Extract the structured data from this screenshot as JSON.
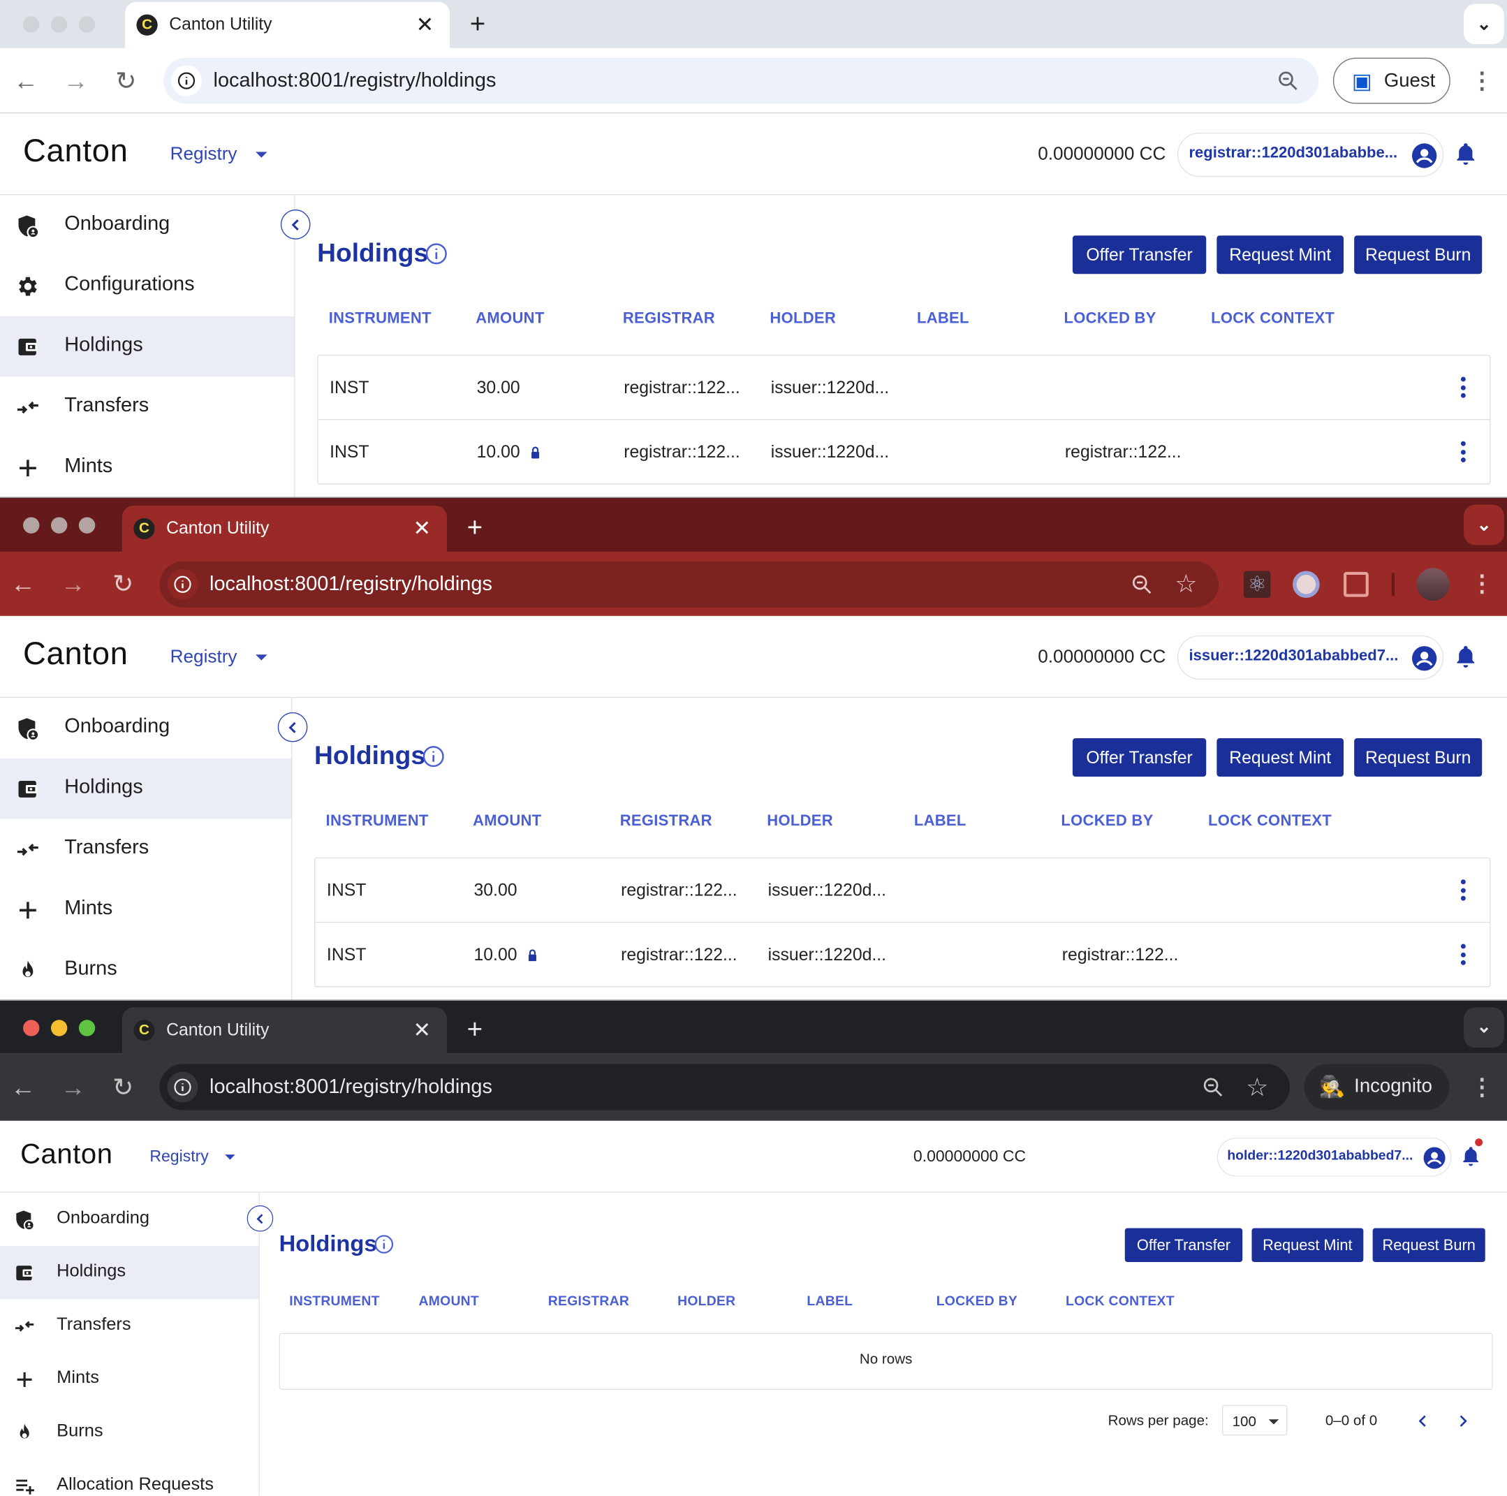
{
  "windows": [
    {
      "theme": "light",
      "browser": {
        "tab_title": "Canton Utility",
        "url": "localhost:8001/registry/holdings",
        "profile_label": "Guest",
        "colors": {
          "tabstrip": "#dfe3ea",
          "tab": "#ffffff",
          "toolbar": "#ffffff",
          "omnibox": "#edf2fa",
          "text": "#1f1f1f",
          "icon": "#5f6368"
        }
      },
      "app": {
        "logo": "Canton",
        "nav_menu": "Registry",
        "balance": "0.00000000 CC",
        "party": "registrar::1220d301ababbe...",
        "notification_dot": false,
        "sidebar": [
          {
            "label": "Onboarding",
            "icon": "shield-person-icon",
            "active": false
          },
          {
            "label": "Configurations",
            "icon": "gear-icon",
            "active": false
          },
          {
            "label": "Holdings",
            "icon": "wallet-icon",
            "active": true
          },
          {
            "label": "Transfers",
            "icon": "transfer-arrows-icon",
            "active": false
          },
          {
            "label": "Mints",
            "icon": "plus-icon",
            "active": false
          }
        ],
        "page_title": "Holdings",
        "buttons": [
          "Offer Transfer",
          "Request Mint",
          "Request Burn"
        ],
        "columns": [
          "INSTRUMENT",
          "AMOUNT",
          "REGISTRAR",
          "HOLDER",
          "LABEL",
          "LOCKED BY",
          "LOCK CONTEXT"
        ],
        "rows": [
          {
            "instrument": "INST",
            "amount": "30.00",
            "locked": false,
            "registrar": "registrar::122...",
            "holder": "issuer::1220d...",
            "label": "",
            "locked_by": "",
            "lock_context": ""
          },
          {
            "instrument": "INST",
            "amount": "10.00",
            "locked": true,
            "registrar": "registrar::122...",
            "holder": "issuer::1220d...",
            "label": "",
            "locked_by": "registrar::122...",
            "lock_context": ""
          }
        ]
      }
    },
    {
      "theme": "red",
      "browser": {
        "tab_title": "Canton Utility",
        "url": "localhost:8001/registry/holdings",
        "colors": {
          "tabstrip": "#641a1a",
          "tab": "#9a2a27",
          "toolbar": "#9a2a27",
          "omnibox": "#7c2321",
          "text": "#ffffff",
          "icon": "#e6c9c7"
        }
      },
      "app": {
        "logo": "Canton",
        "nav_menu": "Registry",
        "balance": "0.00000000 CC",
        "party": "issuer::1220d301ababbed7...",
        "notification_dot": false,
        "sidebar": [
          {
            "label": "Onboarding",
            "icon": "shield-person-icon",
            "active": false
          },
          {
            "label": "Holdings",
            "icon": "wallet-icon",
            "active": true
          },
          {
            "label": "Transfers",
            "icon": "transfer-arrows-icon",
            "active": false
          },
          {
            "label": "Mints",
            "icon": "plus-icon",
            "active": false
          },
          {
            "label": "Burns",
            "icon": "flame-icon",
            "active": false
          }
        ],
        "page_title": "Holdings",
        "buttons": [
          "Offer Transfer",
          "Request Mint",
          "Request Burn"
        ],
        "columns": [
          "INSTRUMENT",
          "AMOUNT",
          "REGISTRAR",
          "HOLDER",
          "LABEL",
          "LOCKED BY",
          "LOCK CONTEXT"
        ],
        "rows": [
          {
            "instrument": "INST",
            "amount": "30.00",
            "locked": false,
            "registrar": "registrar::122...",
            "holder": "issuer::1220d...",
            "label": "",
            "locked_by": "",
            "lock_context": ""
          },
          {
            "instrument": "INST",
            "amount": "10.00",
            "locked": true,
            "registrar": "registrar::122...",
            "holder": "issuer::1220d...",
            "label": "",
            "locked_by": "registrar::122...",
            "lock_context": ""
          }
        ]
      }
    },
    {
      "theme": "incognito",
      "browser": {
        "tab_title": "Canton Utility",
        "url": "localhost:8001/registry/holdings",
        "profile_label": "Incognito",
        "colors": {
          "tabstrip": "#202124",
          "tab": "#35363a",
          "toolbar": "#35363a",
          "omnibox": "#202124",
          "text": "#e8eaed",
          "icon": "#c4c7c5"
        }
      },
      "app": {
        "logo": "Canton",
        "nav_menu": "Registry",
        "balance": "0.00000000 CC",
        "party": "holder::1220d301ababbed7...",
        "notification_dot": true,
        "sidebar": [
          {
            "label": "Onboarding",
            "icon": "shield-person-icon",
            "active": false
          },
          {
            "label": "Holdings",
            "icon": "wallet-icon",
            "active": true
          },
          {
            "label": "Transfers",
            "icon": "transfer-arrows-icon",
            "active": false
          },
          {
            "label": "Mints",
            "icon": "plus-icon",
            "active": false
          },
          {
            "label": "Burns",
            "icon": "flame-icon",
            "active": false
          },
          {
            "label": "Allocation Requests",
            "icon": "playlist-add-icon",
            "active": false
          }
        ],
        "page_title": "Holdings",
        "buttons": [
          "Offer Transfer",
          "Request Mint",
          "Request Burn"
        ],
        "columns": [
          "INSTRUMENT",
          "AMOUNT",
          "REGISTRAR",
          "HOLDER",
          "LABEL",
          "LOCKED BY",
          "LOCK CONTEXT"
        ],
        "rows": [],
        "empty_text": "No rows",
        "pagination": {
          "rows_per_page_label": "Rows per page:",
          "rows_per_page": "100",
          "range": "0–0 of 0"
        }
      }
    }
  ]
}
